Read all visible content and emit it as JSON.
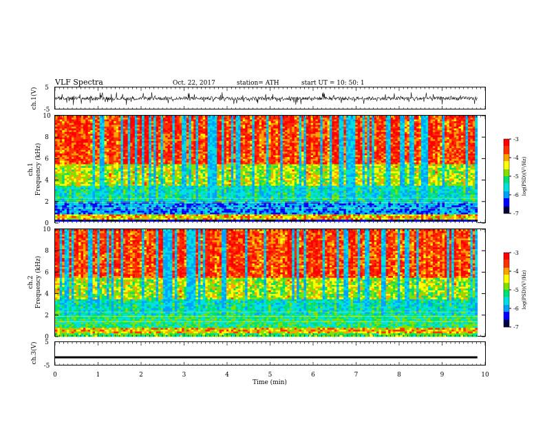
{
  "header": {
    "title": "VLF  Spectra",
    "date": "Oct. 22, 2017",
    "station": "station= ATH",
    "start": "start  UT  =    10: 50: 1"
  },
  "chart_data": [
    {
      "type": "line",
      "panel": "ch1-waveform",
      "ylabel": "ch.1(V)",
      "ylim": [
        -5,
        5
      ],
      "yticks": [
        "5",
        "-5"
      ],
      "xlim": [
        0,
        10
      ],
      "data_extent_min": [
        0,
        9.82
      ],
      "description_of_series": "noisy waveform centered near 0 V, amplitude about ±1 V with spikes to ±3 V"
    },
    {
      "type": "heatmap",
      "panel": "ch1-spectrogram",
      "ylabel_top": "ch.1",
      "ylabel": "Frequency  (kHz)",
      "ylim": [
        0,
        10
      ],
      "yticks": [
        "0",
        "2",
        "4",
        "6",
        "8",
        "10"
      ],
      "xlim": [
        0,
        10
      ],
      "colorbar_label": "log(PSD)(V²/Hz)",
      "colorbar_ticks": [
        "-3",
        "-4",
        "-5",
        "-6",
        "-7"
      ],
      "clim": [
        -7,
        -3
      ]
    },
    {
      "type": "heatmap",
      "panel": "ch2-spectrogram",
      "ylabel_top": "ch.2",
      "ylabel": "Frequency  (kHz)",
      "ylim": [
        0,
        10
      ],
      "yticks": [
        "0",
        "2",
        "4",
        "6",
        "8",
        "10"
      ],
      "xlim": [
        0,
        10
      ],
      "colorbar_label": "log(PSD)(V²/Hz)",
      "colorbar_ticks": [
        "-3",
        "-4",
        "-5",
        "-6",
        "-7"
      ],
      "clim": [
        -7,
        -3
      ]
    },
    {
      "type": "line",
      "panel": "ch3-waveform",
      "ylabel": "ch.3(V)",
      "ylim": [
        -5,
        5
      ],
      "yticks": [
        "5",
        "-5"
      ],
      "xlim": [
        0,
        10
      ],
      "xlabel": "Time  (min)",
      "xticks": [
        "0",
        "1",
        "2",
        "3",
        "4",
        "5",
        "6",
        "7",
        "8",
        "9",
        "10"
      ],
      "constant_value": -1.5
    }
  ],
  "colors": {
    "spectrum": [
      "#000040",
      "#0000ff",
      "#00a0ff",
      "#00e0e0",
      "#00e070",
      "#80e000",
      "#ffff00",
      "#ffa000",
      "#ff3000",
      "#ff0000",
      "#ffc8c8",
      "#ffffff"
    ]
  }
}
